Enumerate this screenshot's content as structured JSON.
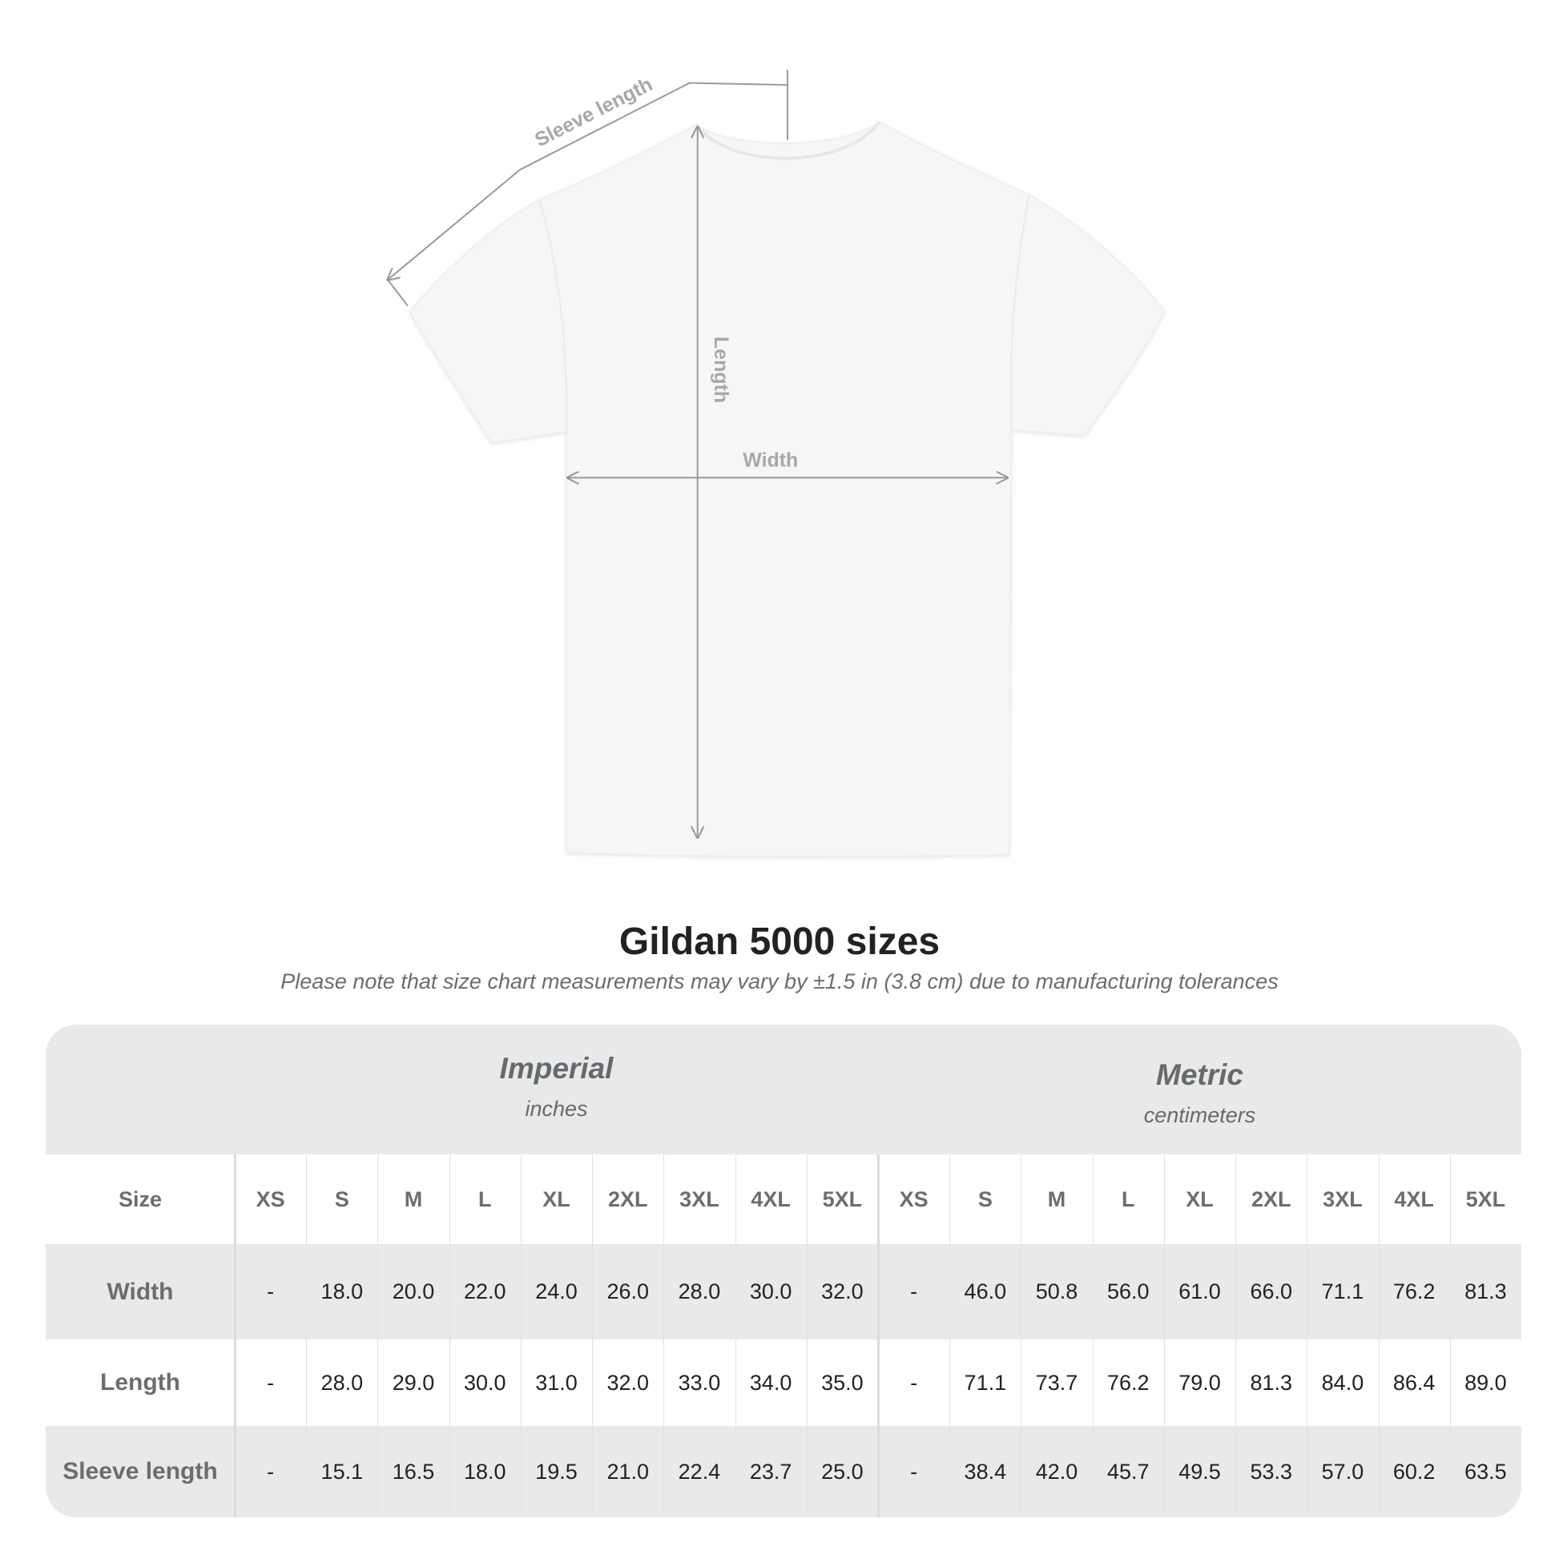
{
  "diagram": {
    "labels": {
      "sleeve": "Sleeve length",
      "length": "Length",
      "width": "Width"
    },
    "colors": {
      "shirt": "#f6f6f6",
      "lines": "#9a9a9a",
      "label_text": "#a8a8a8"
    }
  },
  "title": "Gildan 5000 sizes",
  "subtitle": "Please note that size chart measurements may vary by ±1.5 in (3.8 cm) due to manufacturing tolerances",
  "table": {
    "systems": [
      {
        "name": "Imperial",
        "unit": "inches"
      },
      {
        "name": "Metric",
        "unit": "centimeters"
      }
    ],
    "size_label": "Size",
    "sizes": [
      "XS",
      "S",
      "M",
      "L",
      "XL",
      "2XL",
      "3XL",
      "4XL",
      "5XL"
    ],
    "rows": [
      {
        "label": "Width",
        "imperial": [
          "-",
          "18.0",
          "20.0",
          "22.0",
          "24.0",
          "26.0",
          "28.0",
          "30.0",
          "32.0"
        ],
        "metric": [
          "-",
          "46.0",
          "50.8",
          "56.0",
          "61.0",
          "66.0",
          "71.1",
          "76.2",
          "81.3"
        ]
      },
      {
        "label": "Length",
        "imperial": [
          "-",
          "28.0",
          "29.0",
          "30.0",
          "31.0",
          "32.0",
          "33.0",
          "34.0",
          "35.0"
        ],
        "metric": [
          "-",
          "71.1",
          "73.7",
          "76.2",
          "79.0",
          "81.3",
          "84.0",
          "86.4",
          "89.0"
        ]
      },
      {
        "label": "Sleeve length",
        "imperial": [
          "-",
          "15.1",
          "16.5",
          "18.0",
          "19.5",
          "21.0",
          "22.4",
          "23.7",
          "25.0"
        ],
        "metric": [
          "-",
          "38.4",
          "42.0",
          "45.7",
          "49.5",
          "53.3",
          "57.0",
          "60.2",
          "63.5"
        ]
      }
    ],
    "colors": {
      "band": "#e9e9e9",
      "label": "#6b6e70",
      "value": "#222222"
    }
  }
}
